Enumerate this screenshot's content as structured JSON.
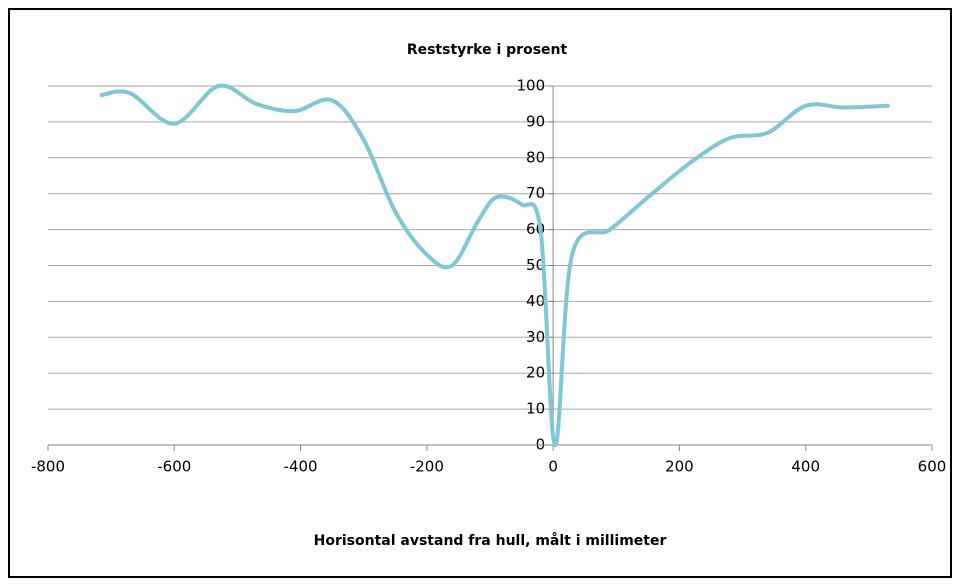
{
  "chart_data": {
    "type": "line",
    "smooth": true,
    "title": "Reststyrke i prosent",
    "x_label": "Horisontal avstand fra hull, målt i millimeter",
    "x": [
      -715,
      -670,
      -600,
      -530,
      -470,
      -410,
      -350,
      -300,
      -250,
      -200,
      -160,
      -120,
      -90,
      -50,
      -20,
      3,
      30,
      90,
      150,
      220,
      280,
      340,
      400,
      460,
      530
    ],
    "values": [
      97.5,
      98,
      89.5,
      100,
      95,
      93,
      96,
      85,
      65,
      53,
      50,
      62,
      69,
      67,
      60,
      0,
      53,
      60,
      69,
      79,
      85.5,
      87,
      94.5,
      94,
      94.5
    ],
    "color": "#7fc7d2",
    "xlim": [
      -800,
      600
    ],
    "xticks": [
      -800,
      -600,
      -400,
      -200,
      0,
      200,
      400,
      600
    ],
    "ylim": [
      0,
      100
    ],
    "yticks": [
      0,
      10,
      20,
      30,
      40,
      50,
      60,
      70,
      80,
      90,
      100
    ],
    "grid": true
  }
}
